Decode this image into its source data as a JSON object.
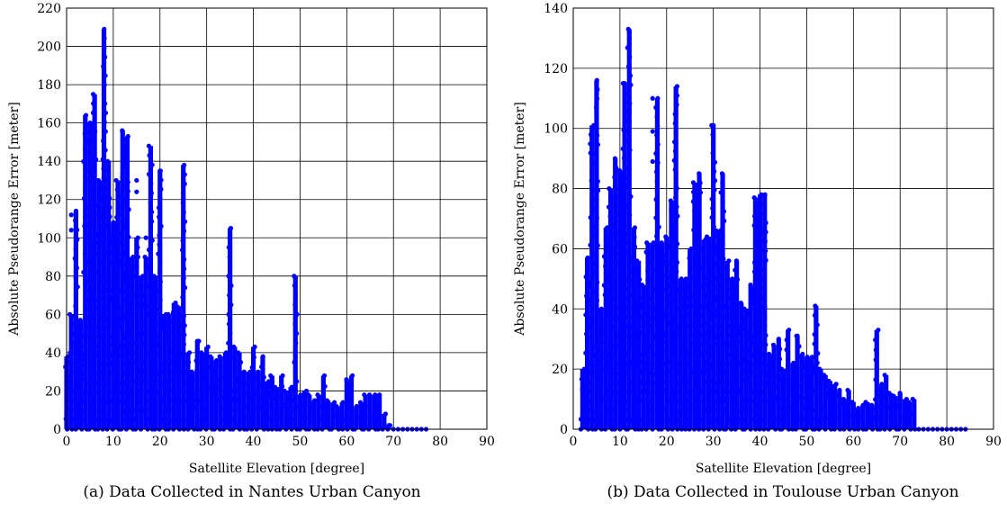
{
  "chart_data": [
    {
      "type": "scatter",
      "xlabel": "Satellite Elevation [degree]",
      "ylabel": "Absolute Pseudorange Error [meter]",
      "caption": "(a) Data Collected in Nantes Urban Canyon",
      "xlim": [
        0,
        90
      ],
      "ylim": [
        0,
        220
      ],
      "xticks": [
        "0",
        "10",
        "20",
        "30",
        "40",
        "50",
        "60",
        "70",
        "80",
        "90"
      ],
      "yticks": [
        "0",
        "20",
        "40",
        "60",
        "80",
        "100",
        "120",
        "140",
        "160",
        "180",
        "200",
        "220"
      ],
      "grid": true,
      "marker_color": "#0000ff",
      "columns": [
        [
          0,
          0,
          38
        ],
        [
          1,
          0,
          60
        ],
        [
          2,
          0,
          114
        ],
        [
          3,
          0,
          57
        ],
        [
          4,
          0,
          164
        ],
        [
          5,
          0,
          160
        ],
        [
          6,
          0,
          175
        ],
        [
          7,
          0,
          130
        ],
        [
          8,
          0,
          209
        ],
        [
          9,
          0,
          140
        ],
        [
          10,
          0,
          108
        ],
        [
          11,
          0,
          130
        ],
        [
          12,
          0,
          156
        ],
        [
          13,
          0,
          153
        ],
        [
          14,
          0,
          90
        ],
        [
          15,
          0,
          100
        ],
        [
          16,
          0,
          80
        ],
        [
          17,
          0,
          90
        ],
        [
          18,
          0,
          148
        ],
        [
          19,
          0,
          80
        ],
        [
          20,
          0,
          135
        ],
        [
          21,
          0,
          60
        ],
        [
          22,
          0,
          60
        ],
        [
          23,
          0,
          66
        ],
        [
          24,
          0,
          64
        ],
        [
          25,
          0,
          138
        ],
        [
          26,
          0,
          40
        ],
        [
          27,
          0,
          30
        ],
        [
          28,
          0,
          46
        ],
        [
          29,
          0,
          40
        ],
        [
          30,
          0,
          43
        ],
        [
          31,
          0,
          38
        ],
        [
          32,
          0,
          36
        ],
        [
          33,
          0,
          38
        ],
        [
          34,
          0,
          40
        ],
        [
          35,
          0,
          105
        ],
        [
          36,
          0,
          43
        ],
        [
          37,
          0,
          40
        ],
        [
          38,
          0,
          30
        ],
        [
          39,
          0,
          30
        ],
        [
          40,
          0,
          43
        ],
        [
          41,
          0,
          30
        ],
        [
          42,
          0,
          38
        ],
        [
          43,
          0,
          25
        ],
        [
          44,
          0,
          28
        ],
        [
          45,
          0,
          22
        ],
        [
          46,
          0,
          28
        ],
        [
          47,
          0,
          20
        ],
        [
          48,
          0,
          22
        ],
        [
          49,
          0,
          80
        ],
        [
          50,
          0,
          18
        ],
        [
          51,
          0,
          20
        ],
        [
          52,
          0,
          18
        ],
        [
          53,
          0,
          15
        ],
        [
          54,
          0,
          18
        ],
        [
          55,
          0,
          28
        ],
        [
          56,
          0,
          15
        ],
        [
          57,
          0,
          14
        ],
        [
          58,
          0,
          12
        ],
        [
          59,
          0,
          14
        ],
        [
          60,
          0,
          26
        ],
        [
          61,
          0,
          28
        ],
        [
          62,
          0,
          12
        ],
        [
          63,
          0,
          14
        ],
        [
          64,
          0,
          18
        ],
        [
          65,
          0,
          18
        ],
        [
          66,
          0,
          18
        ],
        [
          67,
          0,
          18
        ],
        [
          68,
          0,
          8
        ],
        [
          69,
          0,
          2
        ]
      ],
      "points": [
        [
          1,
          112
        ],
        [
          1,
          104
        ],
        [
          4,
          146
        ],
        [
          6,
          151
        ],
        [
          6,
          158
        ],
        [
          8,
          190
        ],
        [
          8,
          200
        ],
        [
          8,
          205
        ],
        [
          13,
          150
        ],
        [
          15,
          124
        ],
        [
          15,
          130
        ],
        [
          17,
          100
        ],
        [
          18,
          146
        ],
        [
          20,
          135
        ],
        [
          25,
          130
        ],
        [
          25,
          120
        ],
        [
          28,
          46
        ],
        [
          35,
          95
        ],
        [
          35,
          88
        ],
        [
          49,
          75
        ],
        [
          69,
          2
        ],
        [
          70,
          0
        ],
        [
          71,
          0
        ],
        [
          72,
          0
        ],
        [
          73,
          0
        ],
        [
          74,
          0
        ],
        [
          75,
          0
        ],
        [
          76,
          0
        ],
        [
          77,
          0
        ]
      ]
    },
    {
      "type": "scatter",
      "xlabel": "Satellite Elevation [degree]",
      "ylabel": "Absolute Pseudorange Error [meter]",
      "caption": "(b) Data Collected in Toulouse Urban Canyon",
      "xlim": [
        0,
        90
      ],
      "ylim": [
        0,
        140
      ],
      "xticks": [
        "0",
        "10",
        "20",
        "30",
        "40",
        "50",
        "60",
        "70",
        "80",
        "90"
      ],
      "yticks": [
        "0",
        "20",
        "40",
        "60",
        "80",
        "100",
        "120",
        "140"
      ],
      "grid": true,
      "marker_color": "#0000ff",
      "columns": [
        [
          2,
          0,
          20
        ],
        [
          3,
          0,
          57
        ],
        [
          4,
          0,
          101
        ],
        [
          5,
          0,
          116
        ],
        [
          6,
          0,
          40
        ],
        [
          7,
          0,
          67
        ],
        [
          8,
          0,
          80
        ],
        [
          9,
          0,
          90
        ],
        [
          10,
          0,
          86
        ],
        [
          11,
          0,
          115
        ],
        [
          12,
          0,
          133
        ],
        [
          13,
          0,
          67
        ],
        [
          14,
          0,
          56
        ],
        [
          15,
          0,
          48
        ],
        [
          16,
          0,
          62
        ],
        [
          17,
          0,
          62
        ],
        [
          18,
          0,
          110
        ],
        [
          19,
          0,
          62
        ],
        [
          20,
          0,
          64
        ],
        [
          21,
          0,
          76
        ],
        [
          22,
          0,
          114
        ],
        [
          23,
          0,
          50
        ],
        [
          24,
          0,
          50
        ],
        [
          25,
          0,
          60
        ],
        [
          26,
          0,
          82
        ],
        [
          27,
          0,
          85
        ],
        [
          28,
          0,
          63
        ],
        [
          29,
          0,
          64
        ],
        [
          30,
          0,
          101
        ],
        [
          31,
          0,
          66
        ],
        [
          32,
          0,
          85
        ],
        [
          33,
          0,
          56
        ],
        [
          34,
          0,
          50
        ],
        [
          35,
          0,
          56
        ],
        [
          36,
          0,
          42
        ],
        [
          37,
          0,
          40
        ],
        [
          38,
          0,
          48
        ],
        [
          39,
          0,
          77
        ],
        [
          40,
          0,
          78
        ],
        [
          41,
          0,
          78
        ],
        [
          42,
          0,
          25
        ],
        [
          43,
          0,
          28
        ],
        [
          44,
          0,
          30
        ],
        [
          45,
          0,
          20
        ],
        [
          46,
          0,
          33
        ],
        [
          47,
          0,
          22
        ],
        [
          48,
          0,
          31
        ],
        [
          49,
          0,
          25
        ],
        [
          50,
          0,
          24
        ],
        [
          51,
          0,
          24
        ],
        [
          52,
          0,
          41
        ],
        [
          53,
          0,
          20
        ],
        [
          54,
          0,
          18
        ],
        [
          55,
          0,
          16
        ],
        [
          56,
          0,
          15
        ],
        [
          57,
          0,
          13
        ],
        [
          58,
          0,
          10
        ],
        [
          59,
          0,
          13
        ],
        [
          60,
          0,
          9
        ],
        [
          61,
          0,
          7
        ],
        [
          62,
          0,
          8
        ],
        [
          63,
          0,
          9
        ],
        [
          64,
          0,
          8
        ],
        [
          65,
          0,
          33
        ],
        [
          66,
          0,
          15
        ],
        [
          67,
          0,
          18
        ],
        [
          68,
          0,
          12
        ],
        [
          69,
          0,
          11
        ],
        [
          70,
          0,
          12
        ],
        [
          71,
          0,
          10
        ],
        [
          72,
          0,
          9
        ],
        [
          73,
          0,
          10
        ]
      ],
      "points": [
        [
          3,
          56
        ],
        [
          5,
          110
        ],
        [
          11,
          115
        ],
        [
          12,
          128
        ],
        [
          12,
          132
        ],
        [
          17,
          110
        ],
        [
          17,
          99
        ],
        [
          17,
          89
        ],
        [
          22,
          105
        ],
        [
          22,
          95
        ],
        [
          30,
          101
        ],
        [
          48,
          31
        ],
        [
          65,
          25
        ],
        [
          74,
          0
        ],
        [
          75,
          0
        ],
        [
          76,
          0
        ],
        [
          77,
          0
        ],
        [
          78,
          0
        ],
        [
          79,
          0
        ],
        [
          80,
          0
        ],
        [
          81,
          0
        ],
        [
          82,
          0
        ],
        [
          83,
          0
        ],
        [
          84,
          0
        ]
      ]
    }
  ]
}
